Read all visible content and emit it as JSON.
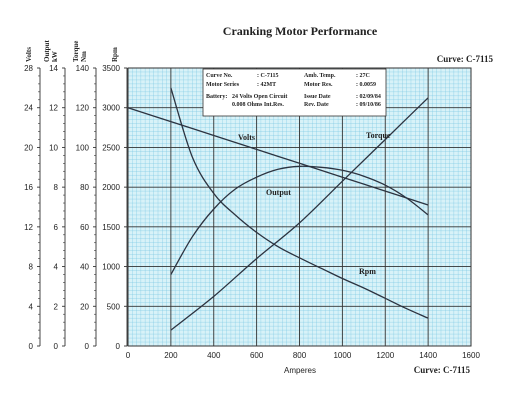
{
  "chart_data": {
    "type": "line",
    "title": "Cranking Motor Performance",
    "curve_label_top": "Curve: C-7115",
    "curve_label_bottom": "Curve: C-7115",
    "xlabel": "Amperes",
    "xlim": [
      0,
      1600
    ],
    "x_ticks": [
      "0",
      "200",
      "400",
      "600",
      "800",
      "1000",
      "1200",
      "1400",
      "1600"
    ],
    "axes": [
      {
        "label": "Volts",
        "range": [
          0,
          28
        ],
        "ticks": [
          "0",
          "4",
          "8",
          "12",
          "16",
          "20",
          "24",
          "28"
        ]
      },
      {
        "label": "Output kW",
        "range": [
          0,
          14
        ],
        "ticks": [
          "0",
          "2",
          "4",
          "6",
          "8",
          "10",
          "12",
          "14"
        ]
      },
      {
        "label": "Torque Nm",
        "range": [
          0,
          140
        ],
        "ticks": [
          "0",
          "20",
          "40",
          "60",
          "80",
          "100",
          "120",
          "140"
        ]
      },
      {
        "label": "Rpm",
        "range": [
          0,
          3500
        ],
        "ticks": [
          "0",
          "500",
          "1000",
          "1500",
          "2000",
          "2500",
          "3000",
          "3500"
        ]
      }
    ],
    "grid": true,
    "colors": {
      "background": "#d8f2f8",
      "minor_grid": "#7cc8e4",
      "major_grid": "#333333",
      "curve": "#2c3340"
    },
    "series": [
      {
        "name": "Volts",
        "axis": "Volts",
        "x": [
          0,
          200,
          400,
          600,
          800,
          1000,
          1200,
          1400
        ],
        "y": [
          24.0,
          22.6,
          21.2,
          19.8,
          18.4,
          17.0,
          15.6,
          14.2
        ]
      },
      {
        "name": "Output",
        "axis": "Output kW",
        "x": [
          200,
          300,
          400,
          500,
          600,
          700,
          800,
          900,
          1000,
          1100,
          1200,
          1300,
          1400
        ],
        "y": [
          3.6,
          5.5,
          6.9,
          7.9,
          8.5,
          8.9,
          9.05,
          9.0,
          8.85,
          8.55,
          8.1,
          7.45,
          6.6
        ]
      },
      {
        "name": "Torque",
        "axis": "Torque Nm",
        "x": [
          200,
          400,
          600,
          800,
          1000,
          1200,
          1400
        ],
        "y": [
          8,
          25,
          44,
          62,
          83,
          104,
          125
        ]
      },
      {
        "name": "Rpm",
        "axis": "Rpm",
        "x": [
          200,
          300,
          400,
          500,
          600,
          700,
          800,
          900,
          1000,
          1100,
          1200,
          1300,
          1400
        ],
        "y": [
          3250,
          2380,
          1920,
          1650,
          1430,
          1250,
          1110,
          980,
          850,
          730,
          600,
          470,
          350
        ]
      }
    ],
    "info_box": [
      {
        "label": "Curve No.",
        "value": ": C-7115"
      },
      {
        "label": "Amb. Temp.",
        "value": ": 27C"
      },
      {
        "label": "Motor Series",
        "value": ": 42MT"
      },
      {
        "label": "Motor Res.",
        "value": ": 0.0059"
      },
      {
        "label": "Battery:",
        "value": "24 Volts Open Circuit"
      },
      {
        "label": "Issue Date",
        "value": ": 02/09/84"
      },
      {
        "label": "",
        "value": "0.008 Ohms Int.Res."
      },
      {
        "label": "Rev. Date",
        "value": ": 09/10/86"
      }
    ]
  }
}
